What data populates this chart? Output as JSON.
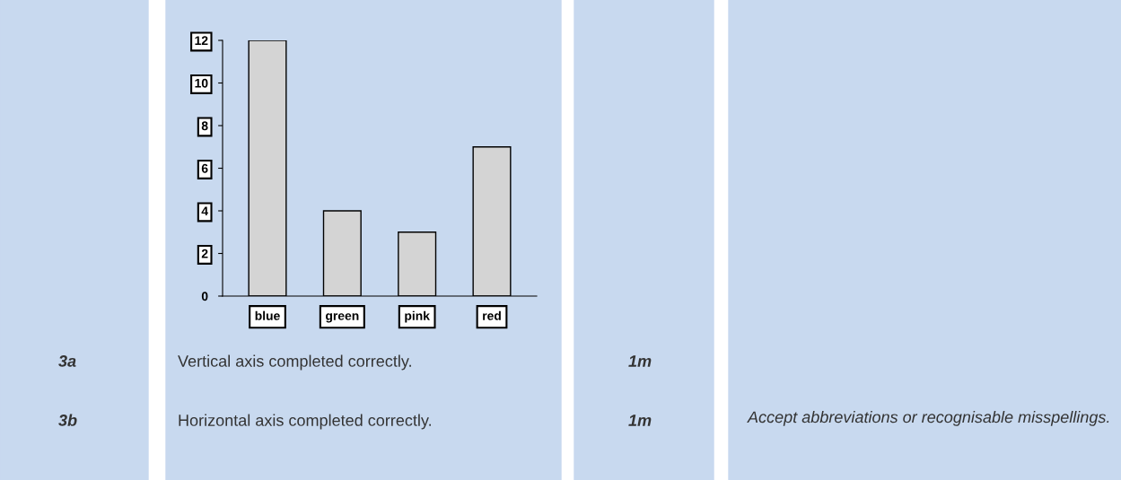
{
  "chart_data": {
    "type": "bar",
    "categories": [
      "blue",
      "green",
      "pink",
      "red"
    ],
    "values": [
      12,
      4,
      3,
      7
    ],
    "color": "#d4d4d4",
    "ylim": [
      0,
      12
    ],
    "yticks": [
      0,
      2,
      4,
      6,
      8,
      10,
      12
    ],
    "grid": false,
    "annotations": [
      "3a",
      "Vertical axis completed correctly.",
      "1m",
      "3b",
      "Horizontal axis completed correctly.",
      "1m",
      "Accept abbreviations or recognisable misspellings."
    ]
  }
}
